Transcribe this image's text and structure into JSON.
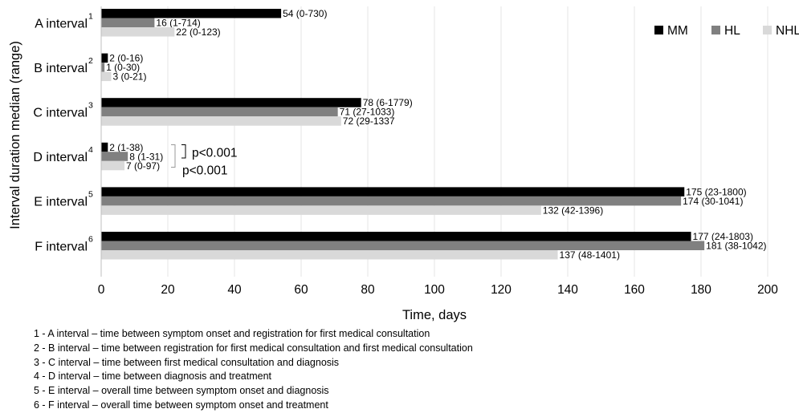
{
  "chart_data": {
    "type": "bar",
    "orientation": "horizontal",
    "categories": [
      {
        "label": "A interval",
        "sup": "1"
      },
      {
        "label": "B interval",
        "sup": "2"
      },
      {
        "label": "C interval",
        "sup": "3"
      },
      {
        "label": "D interval",
        "sup": "4"
      },
      {
        "label": "E interval",
        "sup": "5"
      },
      {
        "label": "F interval",
        "sup": "6"
      }
    ],
    "series": [
      {
        "name": "MM",
        "color": "#000000",
        "values": [
          54,
          2,
          78,
          2,
          175,
          177
        ],
        "labels": [
          "54 (0-730)",
          "2 (0-16)",
          "78 (6-1779)",
          "2 (1-38)",
          "175 (23-1800)",
          "177 (24-1803)"
        ]
      },
      {
        "name": "HL",
        "color": "#808080",
        "values": [
          16,
          1,
          71,
          8,
          174,
          181
        ],
        "labels": [
          "16 (1-714)",
          "1 (0-30)",
          "71 (27-1033)",
          "8 (1-31)",
          "174 (30-1041)",
          "181 (38-1042)"
        ]
      },
      {
        "name": "NHL",
        "color": "#d9d9d9",
        "values": [
          22,
          3,
          72,
          7,
          132,
          137
        ],
        "labels": [
          "22 (0-123)",
          "3 (0-21)",
          "72 (29-1337",
          "7 (0-97)",
          "132 (42-1396)",
          "137 (48-1401)"
        ]
      }
    ],
    "xlabel": "Time, days",
    "ylabel": "Interval duration median (range)",
    "xlim": [
      0,
      200
    ],
    "xticks": [
      0,
      20,
      40,
      60,
      80,
      100,
      120,
      140,
      160,
      180,
      200
    ],
    "grid": "vertical",
    "legend": "top-right",
    "annotations": [
      {
        "category": "D interval",
        "between": [
          "MM",
          "HL"
        ],
        "text": "p<0.001"
      },
      {
        "category": "D interval",
        "between": [
          "MM",
          "NHL"
        ],
        "text": "p<0.001"
      }
    ]
  },
  "footnotes": [
    "1 - A interval – time between symptom onset and registration for first medical consultation",
    "2 - B interval – time between registration for first medical consultation and first medical consultation",
    "3 - C interval – time between first medical consultation and diagnosis",
    "4 - D interval – time between diagnosis and treatment",
    "5 - E interval – overall time between symptom onset and diagnosis",
    "6 - F interval – overall time between symptom onset and treatment"
  ]
}
